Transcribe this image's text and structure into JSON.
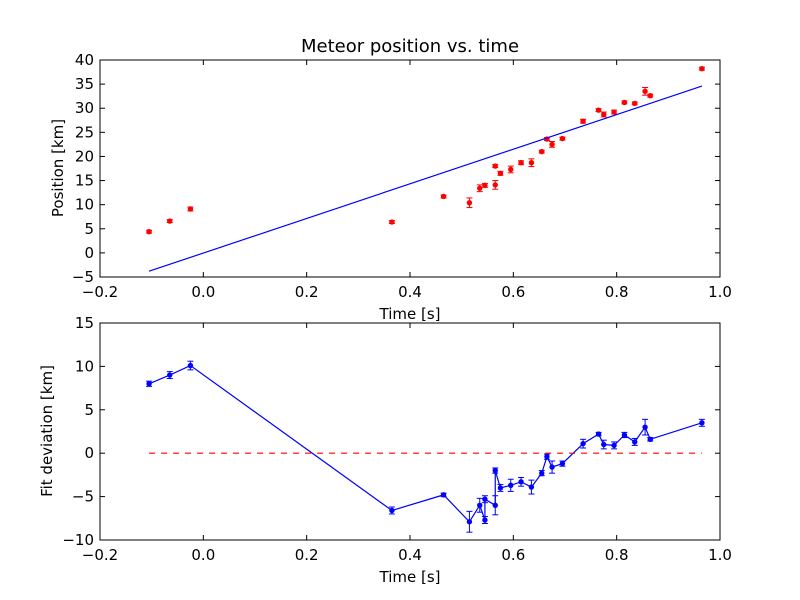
{
  "chart_data": [
    {
      "type": "scatter",
      "title": "Meteor position vs. time",
      "xlabel": "Time [s]",
      "ylabel": "Position [km]",
      "xlim": [
        -0.2,
        1.0
      ],
      "ylim": [
        -5,
        40
      ],
      "xticks": [
        "−0.2",
        "0.0",
        "0.2",
        "0.4",
        "0.6",
        "0.8",
        "1.0"
      ],
      "yticks": [
        "−5",
        "0",
        "5",
        "10",
        "15",
        "20",
        "25",
        "30",
        "35",
        "40"
      ],
      "colors": {
        "points": "#ff0000",
        "fit": "#0000ff"
      },
      "series": [
        {
          "kind": "points-with-errorbars",
          "x": [
            -0.105,
            -0.065,
            -0.025,
            0.365,
            0.465,
            0.515,
            0.535,
            0.545,
            0.565,
            0.565,
            0.575,
            0.595,
            0.615,
            0.635,
            0.655,
            0.665,
            0.675,
            0.695,
            0.735,
            0.765,
            0.775,
            0.795,
            0.815,
            0.835,
            0.855,
            0.865,
            0.965
          ],
          "y": [
            4.4,
            6.6,
            9.1,
            6.4,
            11.7,
            10.4,
            13.4,
            14.0,
            14.1,
            18.0,
            16.5,
            17.3,
            18.7,
            18.7,
            21.0,
            23.6,
            22.5,
            23.7,
            27.3,
            29.6,
            28.7,
            29.2,
            31.2,
            31.0,
            33.5,
            32.6,
            38.2
          ],
          "yerr": [
            0.3,
            0.3,
            0.4,
            0.3,
            0.3,
            1.0,
            0.7,
            0.4,
            0.9,
            0.3,
            0.4,
            0.7,
            0.4,
            0.8,
            0.3,
            0.3,
            0.6,
            0.3,
            0.4,
            0.3,
            0.5,
            0.4,
            0.3,
            0.3,
            0.8,
            0.3,
            0.3
          ]
        },
        {
          "kind": "line",
          "x": [
            -0.105,
            0.965
          ],
          "y": [
            -3.8,
            34.6
          ]
        }
      ]
    },
    {
      "type": "line",
      "xlabel": "Time [s]",
      "ylabel": "Fit deviation [km]",
      "xlim": [
        -0.2,
        1.0
      ],
      "ylim": [
        -10,
        15
      ],
      "xticks": [
        "−0.2",
        "0.0",
        "0.2",
        "0.4",
        "0.6",
        "0.8",
        "1.0"
      ],
      "yticks": [
        "−10",
        "−5",
        "0",
        "5",
        "10",
        "15"
      ],
      "colors": {
        "residuals": "#0000ff",
        "zero": "#ff0000"
      },
      "series": [
        {
          "kind": "line-with-errorbars",
          "x": [
            -0.105,
            -0.065,
            -0.025,
            0.365,
            0.465,
            0.515,
            0.535,
            0.545,
            0.545,
            0.565,
            0.565,
            0.575,
            0.595,
            0.615,
            0.635,
            0.655,
            0.665,
            0.675,
            0.695,
            0.735,
            0.765,
            0.775,
            0.795,
            0.815,
            0.835,
            0.855,
            0.865,
            0.965
          ],
          "y": [
            8.0,
            9.0,
            10.1,
            -6.6,
            -4.8,
            -7.9,
            -6.0,
            -7.7,
            -5.3,
            -6.0,
            -2.0,
            -4.0,
            -3.7,
            -3.3,
            -3.9,
            -2.3,
            -0.4,
            -1.6,
            -1.2,
            1.1,
            2.2,
            1.0,
            0.9,
            2.1,
            1.3,
            3.0,
            1.6,
            3.5
          ],
          "yerr": [
            0.3,
            0.4,
            0.5,
            0.4,
            0.2,
            1.2,
            0.8,
            0.4,
            0.4,
            1.1,
            0.3,
            0.4,
            0.7,
            0.5,
            0.8,
            0.3,
            0.3,
            0.7,
            0.3,
            0.5,
            0.2,
            0.5,
            0.4,
            0.3,
            0.4,
            0.9,
            0.2,
            0.4
          ]
        },
        {
          "kind": "dashed-line",
          "x": [
            -0.105,
            0.965
          ],
          "y": [
            0,
            0
          ]
        }
      ]
    }
  ]
}
